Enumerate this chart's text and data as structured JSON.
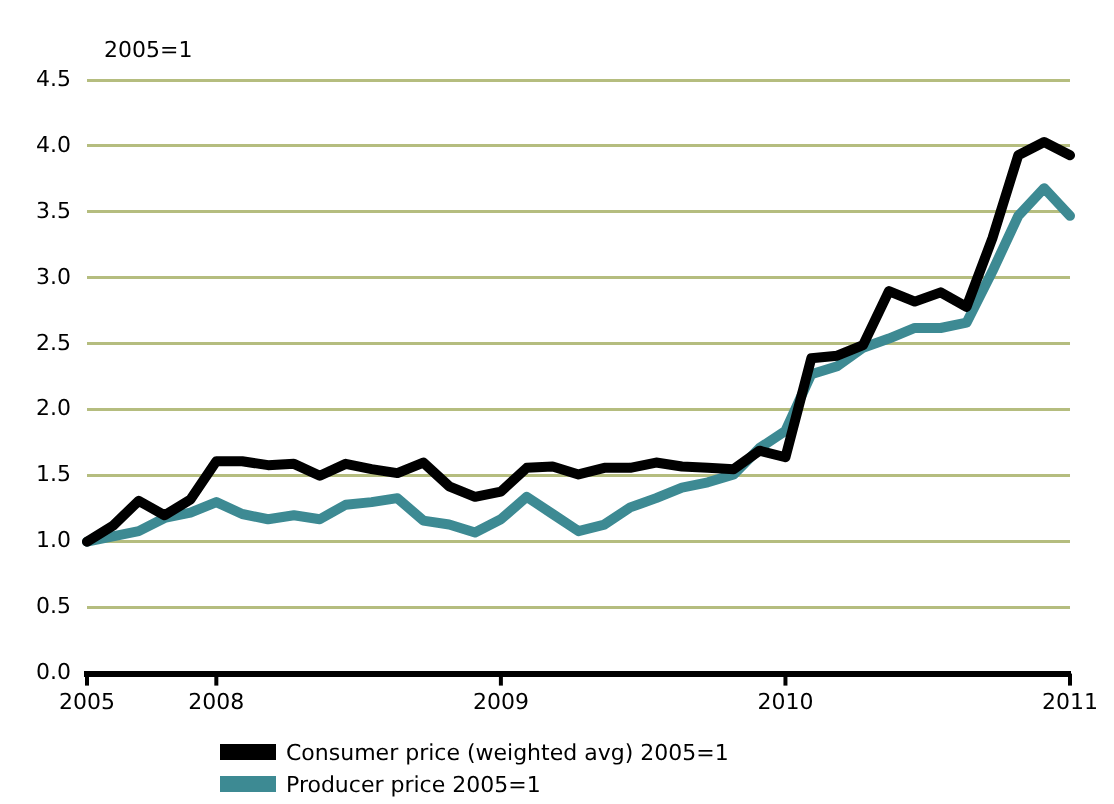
{
  "chart_data": {
    "type": "line",
    "ylabel": "2005=1",
    "categories": [
      "2005",
      null,
      null,
      null,
      null,
      "2008",
      null,
      null,
      null,
      null,
      null,
      null,
      null,
      null,
      null,
      null,
      "2009",
      null,
      null,
      null,
      null,
      null,
      null,
      null,
      null,
      null,
      null,
      "2010",
      null,
      null,
      null,
      null,
      null,
      null,
      null,
      null,
      null,
      null,
      "2011"
    ],
    "series": [
      {
        "name": "Consumer price (weighted avg) 2005=1",
        "color": "#000000",
        "values": [
          1.0,
          1.12,
          1.31,
          1.2,
          1.32,
          1.61,
          1.61,
          1.58,
          1.59,
          1.5,
          1.59,
          1.55,
          1.52,
          1.6,
          1.42,
          1.34,
          1.38,
          1.56,
          1.57,
          1.51,
          1.56,
          1.56,
          1.6,
          1.57,
          1.56,
          1.55,
          1.69,
          1.64,
          2.39,
          2.41,
          2.49,
          2.9,
          2.82,
          2.89,
          2.78,
          3.3,
          3.93,
          4.03,
          3.93
        ]
      },
      {
        "name": "Producer price 2005=1",
        "color": "#3d8a93",
        "values": [
          1.0,
          1.04,
          1.08,
          1.18,
          1.22,
          1.3,
          1.21,
          1.17,
          1.2,
          1.17,
          1.28,
          1.3,
          1.33,
          1.16,
          1.13,
          1.07,
          1.17,
          1.34,
          1.21,
          1.08,
          1.13,
          1.26,
          1.33,
          1.41,
          1.45,
          1.51,
          1.71,
          1.84,
          2.27,
          2.33,
          2.47,
          2.54,
          2.62,
          2.62,
          2.66,
          3.05,
          3.47,
          3.68,
          3.47
        ]
      }
    ],
    "ylim": [
      0,
      4.5
    ],
    "yticks": [
      {
        "value": 0,
        "label": "0.0"
      },
      0.5,
      {
        "value": 1,
        "label": "1.0"
      },
      1.5,
      {
        "value": 2,
        "label": "2.0"
      },
      2.5,
      {
        "value": 3,
        "label": "3.0"
      },
      3.5,
      {
        "value": 4,
        "label": "4.0"
      },
      4.5
    ],
    "grid": "y",
    "legend": "bottom",
    "marker": "none",
    "line_style": "solid"
  }
}
